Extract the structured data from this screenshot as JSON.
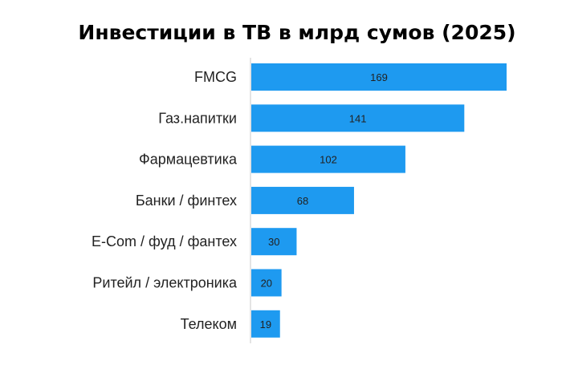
{
  "chart_data": {
    "type": "bar",
    "orientation": "horizontal",
    "title": "Инвестиции в ТВ в млрд сумов (2025)",
    "categories": [
      "FMCG",
      "Газ.напитки",
      "Фармацевтика",
      "Банки / финтех",
      "E-Com / фуд / фантех",
      "Ритейл / электроника",
      "Телеком"
    ],
    "values": [
      169,
      141,
      102,
      68,
      30,
      20,
      19
    ],
    "xlim": [
      0,
      169
    ],
    "grid": false,
    "bar_color": "#1e9af0"
  }
}
